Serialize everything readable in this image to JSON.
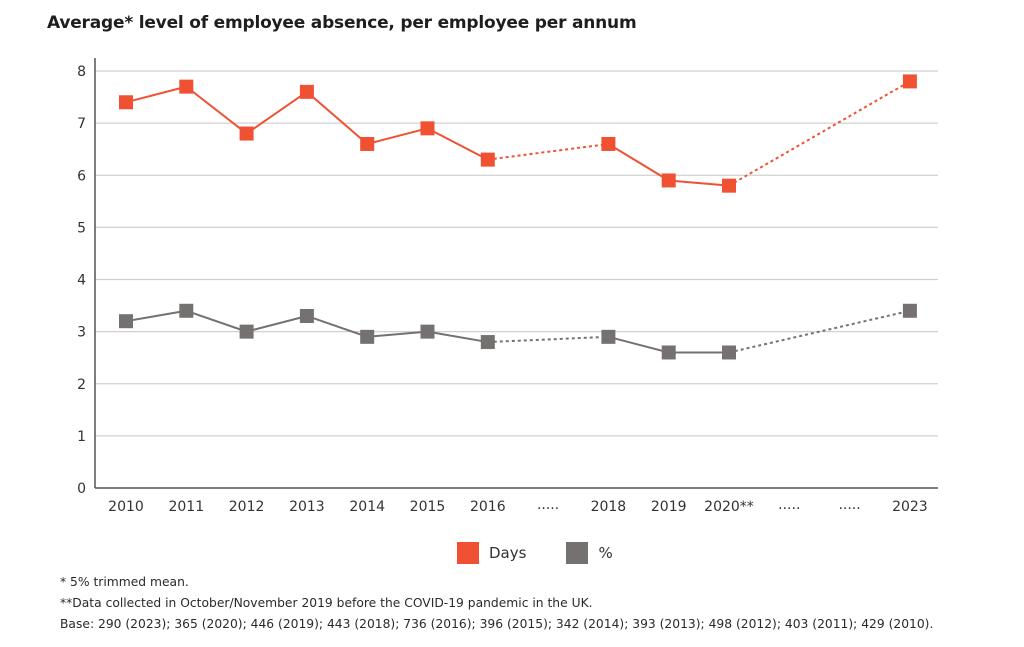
{
  "chart_data": {
    "type": "line",
    "title": "Average* level of employee absence, per employee per annum",
    "xlabel": "",
    "ylabel": "",
    "ylim": [
      0,
      8
    ],
    "yticks": [
      0,
      1,
      2,
      3,
      4,
      5,
      6,
      7,
      8
    ],
    "grid": true,
    "legend_position": "bottom-center",
    "categories": [
      "2010",
      "2011",
      "2012",
      "2013",
      "2014",
      "2015",
      "2016",
      ".....",
      "2018",
      "2019",
      "2020**",
      ".....",
      ".....",
      "2023"
    ],
    "series": [
      {
        "name": "Days",
        "color": "#f05133",
        "values": [
          7.4,
          7.7,
          6.8,
          7.6,
          6.6,
          6.9,
          6.3,
          null,
          6.6,
          5.9,
          5.8,
          null,
          null,
          7.8
        ]
      },
      {
        "name": "%",
        "color": "#767171",
        "values": [
          3.2,
          3.4,
          3.0,
          3.3,
          2.9,
          3.0,
          2.8,
          null,
          2.9,
          2.6,
          2.6,
          null,
          null,
          3.4
        ]
      }
    ],
    "gap_style": "dotted"
  },
  "notes": [
    "* 5% trimmed mean.",
    "**Data collected in October/November 2019 before the COVID-19 pandemic in the UK.",
    "Base: 290 (2023); 365 (2020); 446 (2019); 443 (2018); 736 (2016); 396 (2015); 342 (2014); 393 (2013); 498 (2012); 403 (2011); 429 (2010)."
  ]
}
